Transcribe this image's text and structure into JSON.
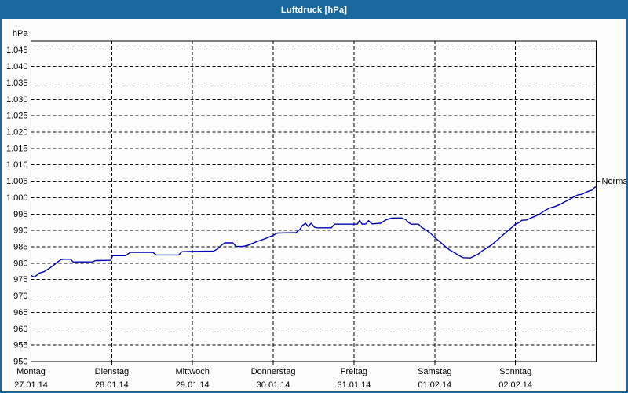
{
  "window": {
    "title": "Luftdruck [hPa]"
  },
  "colors": {
    "titlebar": "#19699f",
    "window_border": "#19699f",
    "background": "#fdfdfd",
    "plot_background": "#ffffff",
    "grid": "#000000",
    "axis": "#000000",
    "series_line": "#0000b4",
    "text": "#000000",
    "title_text": "#ffffff"
  },
  "chart_data": {
    "type": "line",
    "title": "Luftdruck [hPa]",
    "ylabel": "hPa",
    "unit": "hPa",
    "ylim": [
      950,
      1047.8
    ],
    "y_ticks": [
      950,
      955,
      960,
      965,
      970,
      975,
      980,
      985,
      990,
      995,
      1000,
      1005,
      1010,
      1015,
      1020,
      1025,
      1030,
      1035,
      1040,
      1045
    ],
    "y_tick_labels": [
      "950",
      "955",
      "960",
      "965",
      "970",
      "975",
      "980",
      "985",
      "990",
      "995",
      "1.000",
      "1.005",
      "1.010",
      "1.015",
      "1.020",
      "1.025",
      "1.030",
      "1.035",
      "1.040",
      "1.045"
    ],
    "grid": "dashed",
    "legend_position": "none",
    "x_range_days": [
      0,
      7
    ],
    "x_axis_days": [
      {
        "name": "Montag",
        "date": "27.01.14"
      },
      {
        "name": "Dienstag",
        "date": "28.01.14"
      },
      {
        "name": "Mittwoch",
        "date": "29.01.14"
      },
      {
        "name": "Donnerstag",
        "date": "30.01.14"
      },
      {
        "name": "Freitag",
        "date": "31.01.14"
      },
      {
        "name": "Samstag",
        "date": "01.02.14"
      },
      {
        "name": "Sonntag",
        "date": "02.02.14"
      }
    ],
    "annotations": [
      {
        "label": "Normal",
        "value": 1005,
        "position": "right-axis"
      }
    ],
    "series": [
      {
        "name": "Luftdruck",
        "unit": "hPa",
        "color": "#0000b4",
        "points": [
          [
            0.0,
            976.3
          ],
          [
            0.02,
            976.0
          ],
          [
            0.04,
            975.8
          ],
          [
            0.07,
            976.3
          ],
          [
            0.1,
            977.0
          ],
          [
            0.16,
            977.4
          ],
          [
            0.22,
            978.3
          ],
          [
            0.27,
            979.2
          ],
          [
            0.32,
            980.2
          ],
          [
            0.37,
            981.1
          ],
          [
            0.4,
            981.2
          ],
          [
            0.49,
            981.2
          ],
          [
            0.52,
            980.4
          ],
          [
            0.76,
            980.4
          ],
          [
            0.8,
            980.8
          ],
          [
            0.99,
            980.9
          ],
          [
            1.01,
            982.3
          ],
          [
            1.17,
            982.3
          ],
          [
            1.2,
            982.8
          ],
          [
            1.23,
            983.3
          ],
          [
            1.51,
            983.3
          ],
          [
            1.55,
            982.5
          ],
          [
            1.83,
            982.5
          ],
          [
            1.87,
            983.5
          ],
          [
            2.0,
            983.6
          ],
          [
            2.26,
            983.7
          ],
          [
            2.31,
            984.3
          ],
          [
            2.36,
            985.5
          ],
          [
            2.4,
            986.2
          ],
          [
            2.5,
            986.2
          ],
          [
            2.54,
            985.1
          ],
          [
            2.62,
            985.1
          ],
          [
            2.68,
            985.4
          ],
          [
            2.74,
            986.0
          ],
          [
            2.82,
            986.8
          ],
          [
            2.9,
            987.5
          ],
          [
            3.0,
            988.5
          ],
          [
            3.05,
            989.2
          ],
          [
            3.28,
            989.3
          ],
          [
            3.33,
            990.3
          ],
          [
            3.36,
            991.5
          ],
          [
            3.4,
            992.2
          ],
          [
            3.43,
            991.2
          ],
          [
            3.47,
            992.2
          ],
          [
            3.51,
            991.0
          ],
          [
            3.54,
            990.8
          ],
          [
            3.72,
            990.8
          ],
          [
            3.76,
            991.9
          ],
          [
            4.0,
            991.9
          ],
          [
            4.04,
            991.9
          ],
          [
            4.07,
            993.1
          ],
          [
            4.1,
            991.9
          ],
          [
            4.15,
            992.0
          ],
          [
            4.18,
            993.0
          ],
          [
            4.22,
            992.0
          ],
          [
            4.33,
            992.2
          ],
          [
            4.4,
            993.3
          ],
          [
            4.47,
            993.8
          ],
          [
            4.59,
            993.8
          ],
          [
            4.64,
            993.3
          ],
          [
            4.68,
            992.3
          ],
          [
            4.71,
            991.9
          ],
          [
            4.8,
            991.9
          ],
          [
            4.84,
            990.9
          ],
          [
            4.89,
            990.2
          ],
          [
            4.95,
            989.1
          ],
          [
            5.0,
            987.8
          ],
          [
            5.06,
            986.6
          ],
          [
            5.12,
            985.3
          ],
          [
            5.18,
            984.1
          ],
          [
            5.25,
            983.1
          ],
          [
            5.31,
            982.2
          ],
          [
            5.35,
            981.7
          ],
          [
            5.44,
            981.6
          ],
          [
            5.49,
            982.2
          ],
          [
            5.54,
            982.8
          ],
          [
            5.59,
            983.8
          ],
          [
            5.65,
            984.7
          ],
          [
            5.7,
            985.5
          ],
          [
            5.75,
            986.5
          ],
          [
            5.8,
            987.6
          ],
          [
            5.86,
            988.9
          ],
          [
            5.91,
            990.0
          ],
          [
            5.96,
            991.0
          ],
          [
            6.0,
            991.9
          ],
          [
            6.04,
            992.3
          ],
          [
            6.08,
            993.1
          ],
          [
            6.14,
            993.2
          ],
          [
            6.19,
            993.8
          ],
          [
            6.25,
            994.4
          ],
          [
            6.3,
            995.0
          ],
          [
            6.36,
            996.0
          ],
          [
            6.42,
            996.8
          ],
          [
            6.49,
            997.3
          ],
          [
            6.55,
            997.9
          ],
          [
            6.61,
            998.7
          ],
          [
            6.66,
            999.3
          ],
          [
            6.72,
            1000.2
          ],
          [
            6.77,
            1000.8
          ],
          [
            6.82,
            1001.0
          ],
          [
            6.87,
            1001.6
          ],
          [
            6.92,
            1002.1
          ],
          [
            6.95,
            1002.3
          ],
          [
            6.98,
            1003.1
          ],
          [
            7.0,
            1003.3
          ]
        ]
      }
    ]
  }
}
